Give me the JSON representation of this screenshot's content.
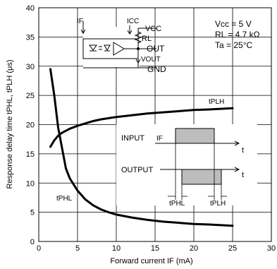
{
  "chart_data": {
    "type": "line",
    "xlabel": "Forward current IF (mA)",
    "ylabel": "Response delay time tPHL, tPLH (μs)",
    "xlim": [
      0,
      30
    ],
    "ylim": [
      0,
      40
    ],
    "x_ticks": [
      "0",
      "5",
      "10",
      "15",
      "20",
      "25",
      "30"
    ],
    "y_ticks": [
      "0",
      "5",
      "10",
      "15",
      "20",
      "25",
      "30",
      "35",
      "40"
    ],
    "grid": true,
    "series": [
      {
        "name": "tPLH",
        "points": [
          [
            1.5,
            16.2
          ],
          [
            2,
            17.3
          ],
          [
            2.5,
            18.1
          ],
          [
            3,
            18.6
          ],
          [
            4,
            19.3
          ],
          [
            5,
            19.8
          ],
          [
            6,
            20.2
          ],
          [
            7,
            20.6
          ],
          [
            8,
            20.9
          ],
          [
            9,
            21.1
          ],
          [
            10,
            21.3
          ],
          [
            12,
            21.6
          ],
          [
            14,
            21.9
          ],
          [
            16,
            22.1
          ],
          [
            18,
            22.3
          ],
          [
            20,
            22.5
          ],
          [
            22,
            22.6
          ],
          [
            25,
            22.8
          ]
        ]
      },
      {
        "name": "tPHL",
        "points": [
          [
            1.5,
            29.5
          ],
          [
            2,
            25
          ],
          [
            2.5,
            19.5
          ],
          [
            3,
            16
          ],
          [
            3.5,
            12.5
          ],
          [
            4,
            10.8
          ],
          [
            5,
            8.7
          ],
          [
            6,
            7.2
          ],
          [
            7,
            6.2
          ],
          [
            8,
            5.5
          ],
          [
            9,
            5
          ],
          [
            10,
            4.6
          ],
          [
            12,
            4.1
          ],
          [
            14,
            3.7
          ],
          [
            16,
            3.4
          ],
          [
            18,
            3.2
          ],
          [
            20,
            3
          ],
          [
            22,
            2.9
          ],
          [
            25,
            2.7
          ]
        ]
      }
    ],
    "conditions": [
      "Vcc = 5 V",
      "RL = 4.7 kΩ",
      "Ta = 25°C"
    ],
    "circuit_labels": {
      "if": "IF",
      "icc": "ICC",
      "vcc": "VCC",
      "rl": "RL",
      "out": "OUT",
      "vout": "VOUT",
      "gnd": "GND"
    },
    "timing_labels": {
      "input": "INPUT",
      "if": "IF",
      "output": "OUTPUT",
      "t1": "t",
      "t2": "t",
      "tphl": "tPHL",
      "tplh": "tPLH"
    },
    "colors": {
      "line": "#000000",
      "grid": "#000000",
      "pulse_fill": "#bdbdbd"
    }
  }
}
